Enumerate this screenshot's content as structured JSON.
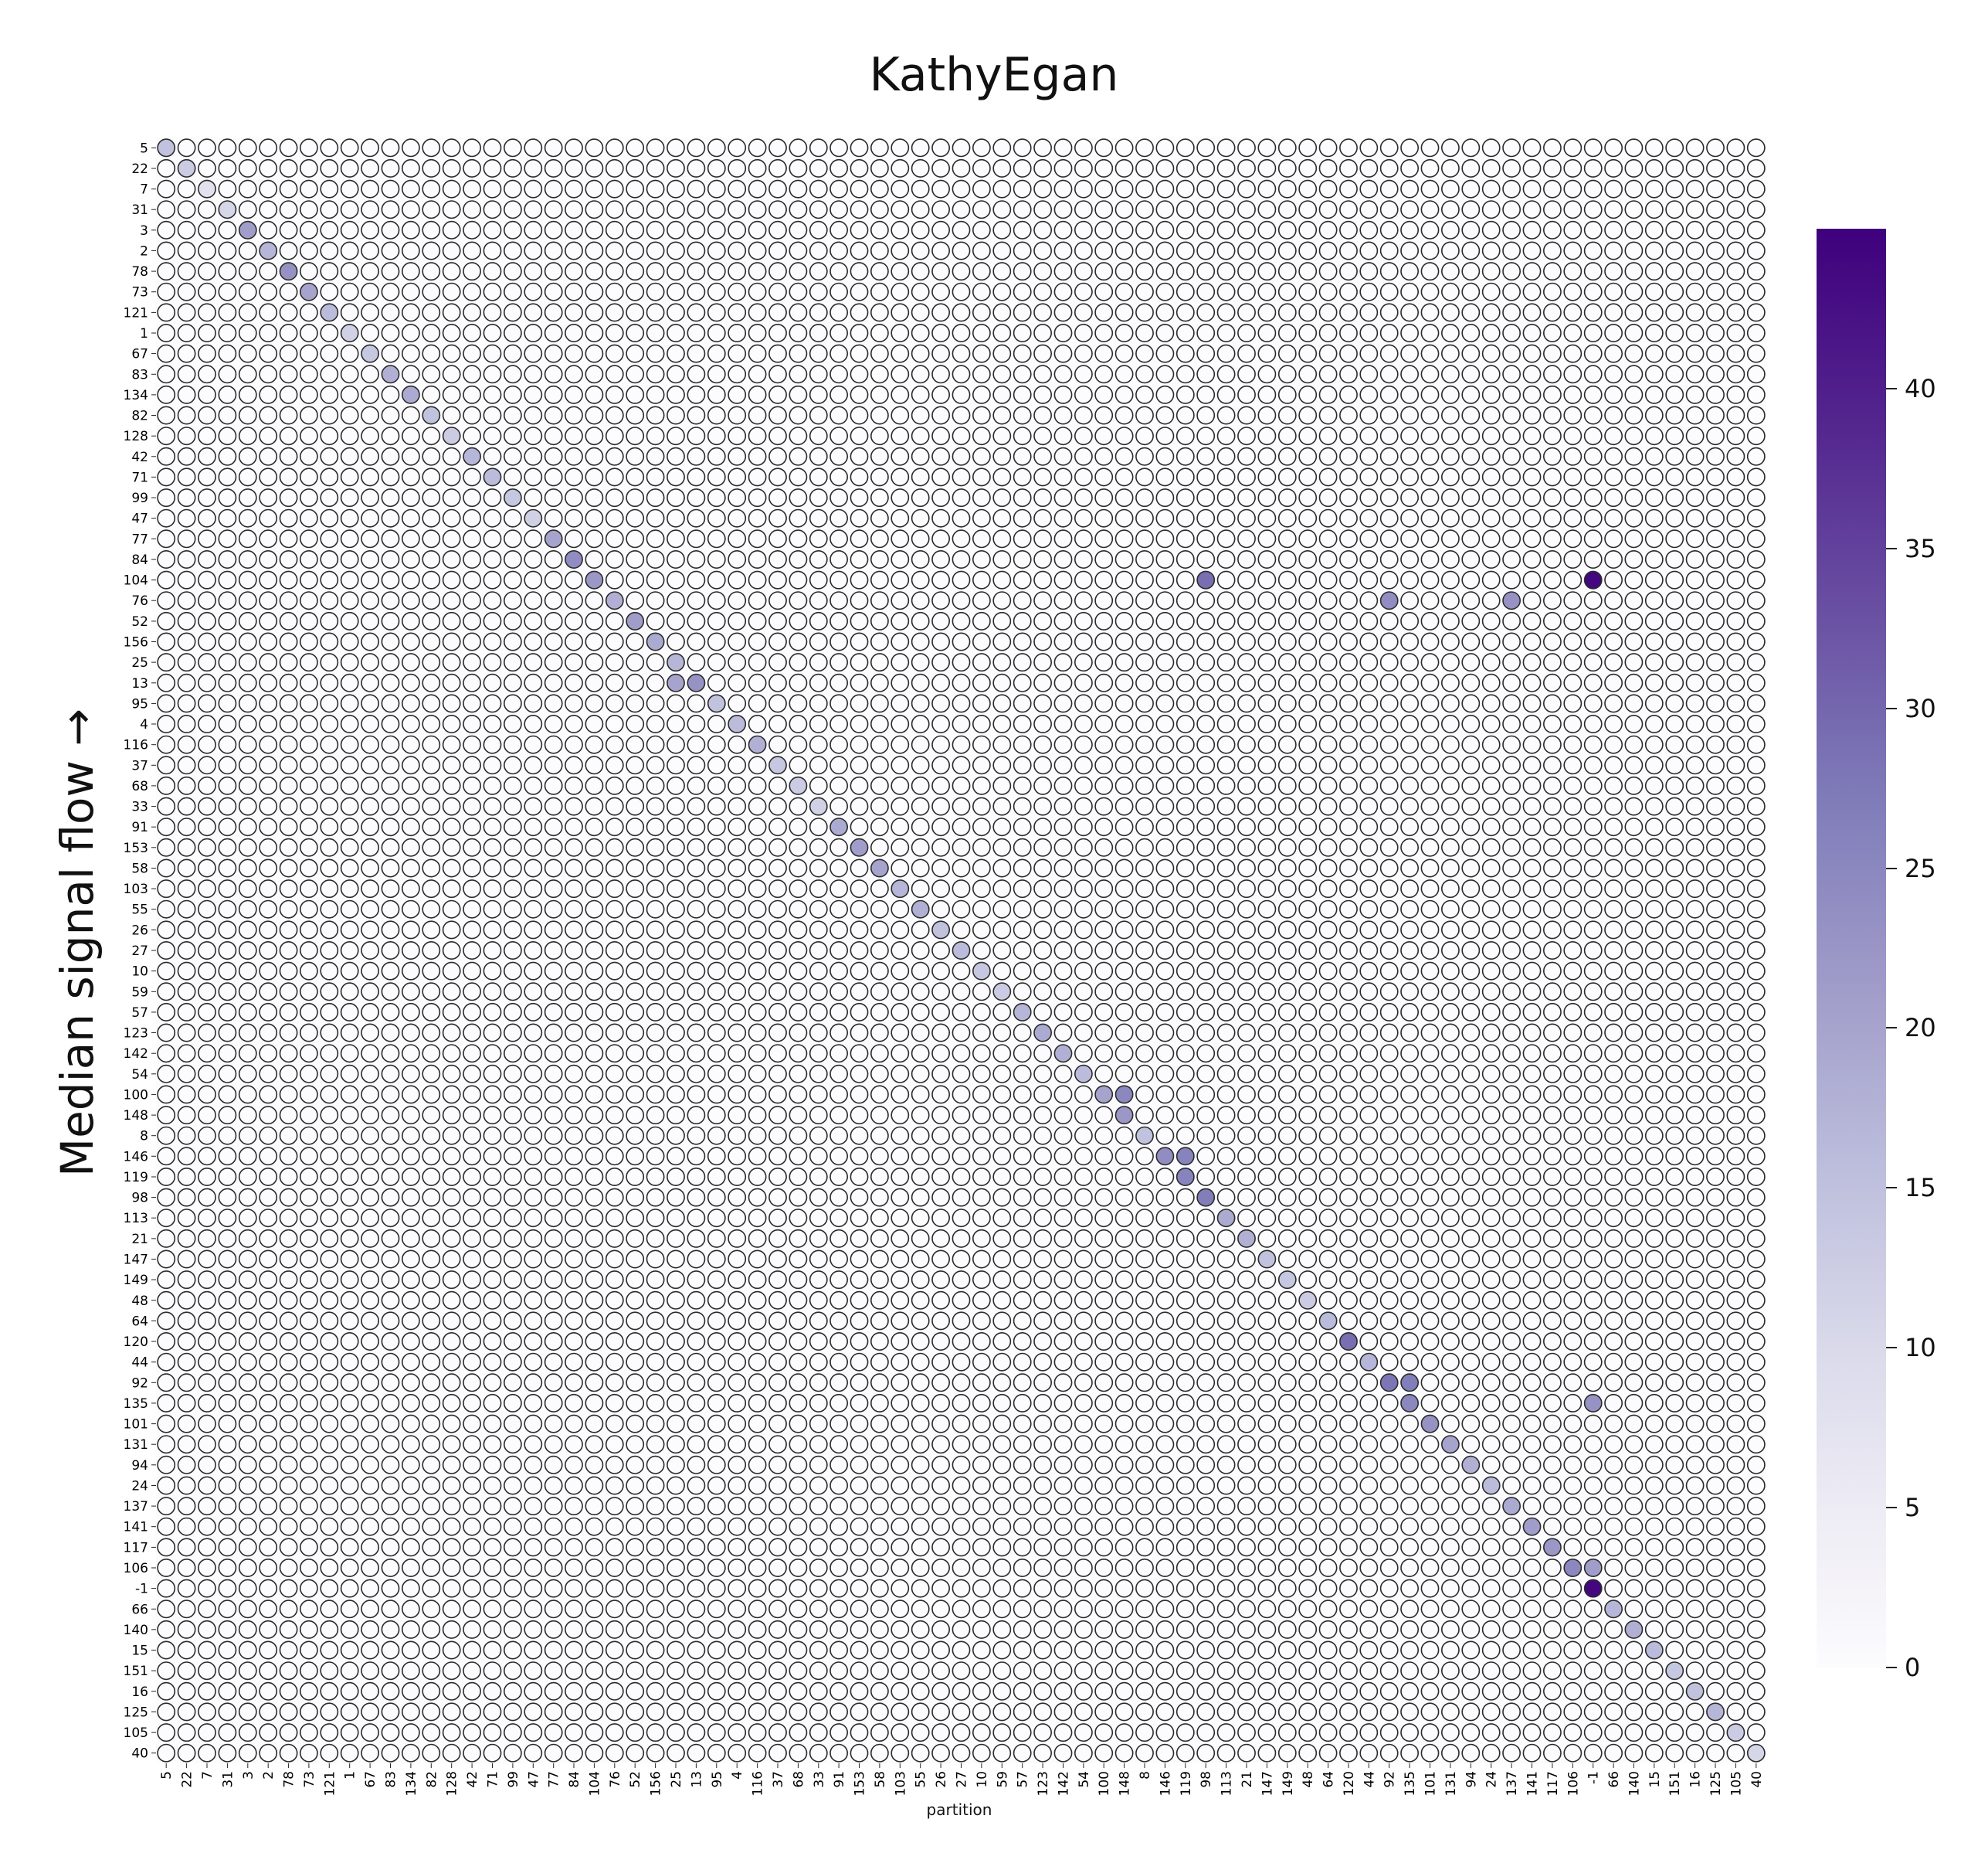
{
  "chart_data": {
    "type": "heatmap",
    "title": "KathyEgan",
    "xlabel": "partition",
    "ylabel": "Median signal flow →",
    "row_labels": [
      "5",
      "22",
      "7",
      "31",
      "3",
      "2",
      "78",
      "73",
      "121",
      "1",
      "67",
      "83",
      "134",
      "82",
      "128",
      "42",
      "71",
      "99",
      "47",
      "77",
      "84",
      "104",
      "76",
      "52",
      "156",
      "25",
      "13",
      "95",
      "4",
      "116",
      "37",
      "68",
      "33",
      "91",
      "153",
      "58",
      "103",
      "55",
      "26",
      "27",
      "10",
      "59",
      "57",
      "123",
      "142",
      "54",
      "100",
      "148",
      "8",
      "146",
      "119",
      "98",
      "113",
      "21",
      "147",
      "149",
      "48",
      "64",
      "120",
      "44",
      "92",
      "135",
      "101",
      "131",
      "94",
      "24",
      "137",
      "141",
      "117",
      "106",
      "-1",
      "66",
      "140",
      "15",
      "151",
      "16",
      "125",
      "105",
      "40"
    ],
    "col_labels": [
      "5",
      "22",
      "7",
      "31",
      "3",
      "2",
      "78",
      "73",
      "121",
      "1",
      "67",
      "83",
      "134",
      "82",
      "128",
      "42",
      "71",
      "99",
      "47",
      "77",
      "84",
      "104",
      "76",
      "52",
      "156",
      "25",
      "13",
      "95",
      "4",
      "116",
      "37",
      "68",
      "33",
      "91",
      "153",
      "58",
      "103",
      "55",
      "26",
      "27",
      "10",
      "59",
      "57",
      "123",
      "142",
      "54",
      "100",
      "148",
      "8",
      "146",
      "119",
      "98",
      "113",
      "21",
      "147",
      "149",
      "48",
      "64",
      "120",
      "44",
      "92",
      "135",
      "101",
      "131",
      "94",
      "24",
      "137",
      "141",
      "117",
      "106",
      "-1",
      "66",
      "140",
      "15",
      "151",
      "16",
      "125",
      "105",
      "40"
    ],
    "colorscale": "Purples",
    "vmin": 0,
    "vmax": 45,
    "colorbar_ticks": [
      0,
      5,
      10,
      15,
      20,
      25,
      30,
      35,
      40
    ],
    "diagonal_values": [
      16,
      14,
      9,
      12,
      22,
      18,
      24,
      21,
      17,
      13,
      15,
      19,
      20,
      16,
      14,
      18,
      17,
      15,
      13,
      21,
      25,
      23,
      19,
      22,
      20,
      18,
      24,
      16,
      17,
      19,
      15,
      14,
      13,
      20,
      22,
      21,
      18,
      19,
      16,
      17,
      15,
      14,
      18,
      20,
      19,
      17,
      21,
      23,
      16,
      25,
      27,
      28,
      20,
      19,
      16,
      15,
      14,
      17,
      30,
      18,
      29,
      26,
      24,
      21,
      19,
      17,
      20,
      22,
      23,
      26,
      44,
      18,
      19,
      17,
      15,
      16,
      18,
      14,
      12
    ],
    "hotspots": [
      {
        "row": "104",
        "col": "98",
        "value": 30
      },
      {
        "row": "104",
        "col": "-1",
        "value": 44
      },
      {
        "row": "76",
        "col": "92",
        "value": 25
      },
      {
        "row": "76",
        "col": "137",
        "value": 24
      },
      {
        "row": "100",
        "col": "148",
        "value": 26
      },
      {
        "row": "146",
        "col": "119",
        "value": 27
      },
      {
        "row": "92",
        "col": "135",
        "value": 28
      },
      {
        "row": "135",
        "col": "-1",
        "value": 24
      },
      {
        "row": "106",
        "col": "-1",
        "value": 22
      },
      {
        "row": "13",
        "col": "25",
        "value": 21
      },
      {
        "row": "3",
        "col": "3",
        "value": 22
      }
    ]
  }
}
